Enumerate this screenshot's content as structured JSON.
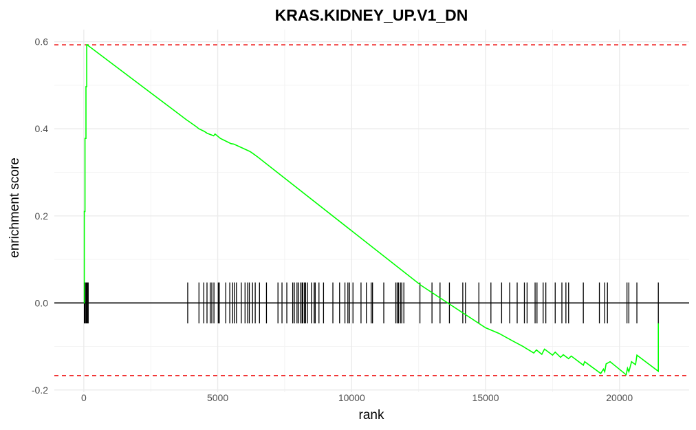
{
  "chart_data": {
    "type": "line",
    "title": "KRAS.KIDNEY_UP.V1_DN",
    "xlabel": "rank",
    "ylabel": "enrichment score",
    "xlim": [
      -1100,
      22600
    ],
    "ylim": [
      -0.205,
      0.628
    ],
    "x_ticks": [
      0,
      5000,
      10000,
      15000,
      20000
    ],
    "x_tick_labels": [
      "0",
      "5000",
      "10000",
      "15000",
      "20000"
    ],
    "y_ticks": [
      -0.2,
      0.0,
      0.2,
      0.4,
      0.6
    ],
    "y_tick_labels": [
      "-0.2",
      "0.0",
      "0.2",
      "0.4",
      "0.6"
    ],
    "grid": true,
    "series": [
      {
        "color": "#00ff00",
        "x": [
          0,
          20,
          20,
          45,
          45,
          80,
          80,
          110,
          110,
          140,
          140,
          165,
          165,
          3850,
          3900,
          4200,
          4300,
          4500,
          4600,
          4850,
          4900,
          5100,
          5200,
          5500,
          5600,
          6200,
          6300,
          6500,
          12600,
          15000,
          15500,
          16000,
          16400,
          16800,
          16900,
          17100,
          17200,
          17500,
          17600,
          17800,
          17900,
          18100,
          18200,
          18650,
          18700,
          19300,
          19400,
          19450,
          19500,
          19650,
          20250,
          20300,
          20350,
          20450,
          20600,
          20650,
          21450,
          21450
        ],
        "y": [
          0.0,
          0.0,
          0.21,
          0.21,
          0.378,
          0.378,
          0.497,
          0.497,
          0.593,
          0.593,
          0.592,
          0.592,
          0.591,
          0.42,
          0.418,
          0.405,
          0.4,
          0.394,
          0.39,
          0.384,
          0.388,
          0.378,
          0.375,
          0.366,
          0.365,
          0.348,
          0.344,
          0.335,
          0.04,
          -0.057,
          -0.07,
          -0.087,
          -0.1,
          -0.115,
          -0.108,
          -0.118,
          -0.106,
          -0.12,
          -0.113,
          -0.125,
          -0.119,
          -0.128,
          -0.122,
          -0.143,
          -0.135,
          -0.162,
          -0.152,
          -0.158,
          -0.14,
          -0.135,
          -0.165,
          -0.15,
          -0.158,
          -0.135,
          -0.142,
          -0.12,
          -0.157,
          -0.047
        ]
      }
    ],
    "zero_line": 0,
    "thresholds": [
      {
        "value": 0.593,
        "color": "#ee1111",
        "style": "dashed"
      },
      {
        "value": -0.167,
        "color": "#ee1111",
        "style": "dashed"
      }
    ],
    "rug": {
      "color": "#000000",
      "height": 0.047,
      "positions": [
        20,
        45,
        80,
        110,
        140,
        165,
        3880,
        4300,
        4480,
        4600,
        4720,
        4780,
        4860,
        5020,
        5060,
        5300,
        5450,
        5560,
        5620,
        5700,
        5880,
        6020,
        6120,
        6180,
        6300,
        6400,
        6560,
        6820,
        7250,
        7400,
        7580,
        7800,
        7860,
        7960,
        8020,
        8100,
        8150,
        8180,
        8240,
        8280,
        8350,
        8500,
        8600,
        8640,
        8780,
        8950,
        9300,
        9550,
        9750,
        9860,
        9920,
        10050,
        10350,
        10550,
        10730,
        10780,
        11200,
        11650,
        11700,
        11750,
        11820,
        11870,
        11950,
        12550,
        13000,
        13300,
        13650,
        14150,
        14250,
        14750,
        15200,
        15600,
        15900,
        16180,
        16450,
        16550,
        16850,
        16920,
        17150,
        17250,
        17600,
        17850,
        18000,
        18100,
        18650,
        19250,
        19450,
        19550,
        20280,
        20350,
        20650,
        21450
      ]
    }
  }
}
